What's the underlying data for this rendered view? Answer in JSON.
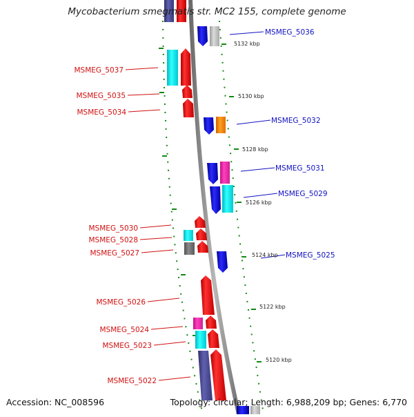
{
  "title": "Mycobacterium smegmatis str. MC2 155, complete genome",
  "accession": "Accession: NC_008596",
  "summary": "Topology: circular; Length: 6,988,209 bp; Genes: 6,770",
  "colors": {
    "reverse_label": "#d01010",
    "forward_label": "#1010c0",
    "backbone": "#8a8a8a",
    "tick": "#118811"
  },
  "kbp_labels": [
    "5132 kbp",
    "5130 kbp",
    "5128 kbp",
    "5126 kbp",
    "5124 kbp",
    "5122 kbp",
    "5120 kbp"
  ],
  "genes_reverse": [
    "MSMEG_5037",
    "MSMEG_5035",
    "MSMEG_5034",
    "MSMEG_5030",
    "MSMEG_5028",
    "MSMEG_5027",
    "MSMEG_5026",
    "MSMEG_5024",
    "MSMEG_5023",
    "MSMEG_5022"
  ],
  "genes_forward": [
    "MSMEG_5036",
    "MSMEG_5032",
    "MSMEG_5031",
    "MSMEG_5029",
    "MSMEG_5025"
  ]
}
